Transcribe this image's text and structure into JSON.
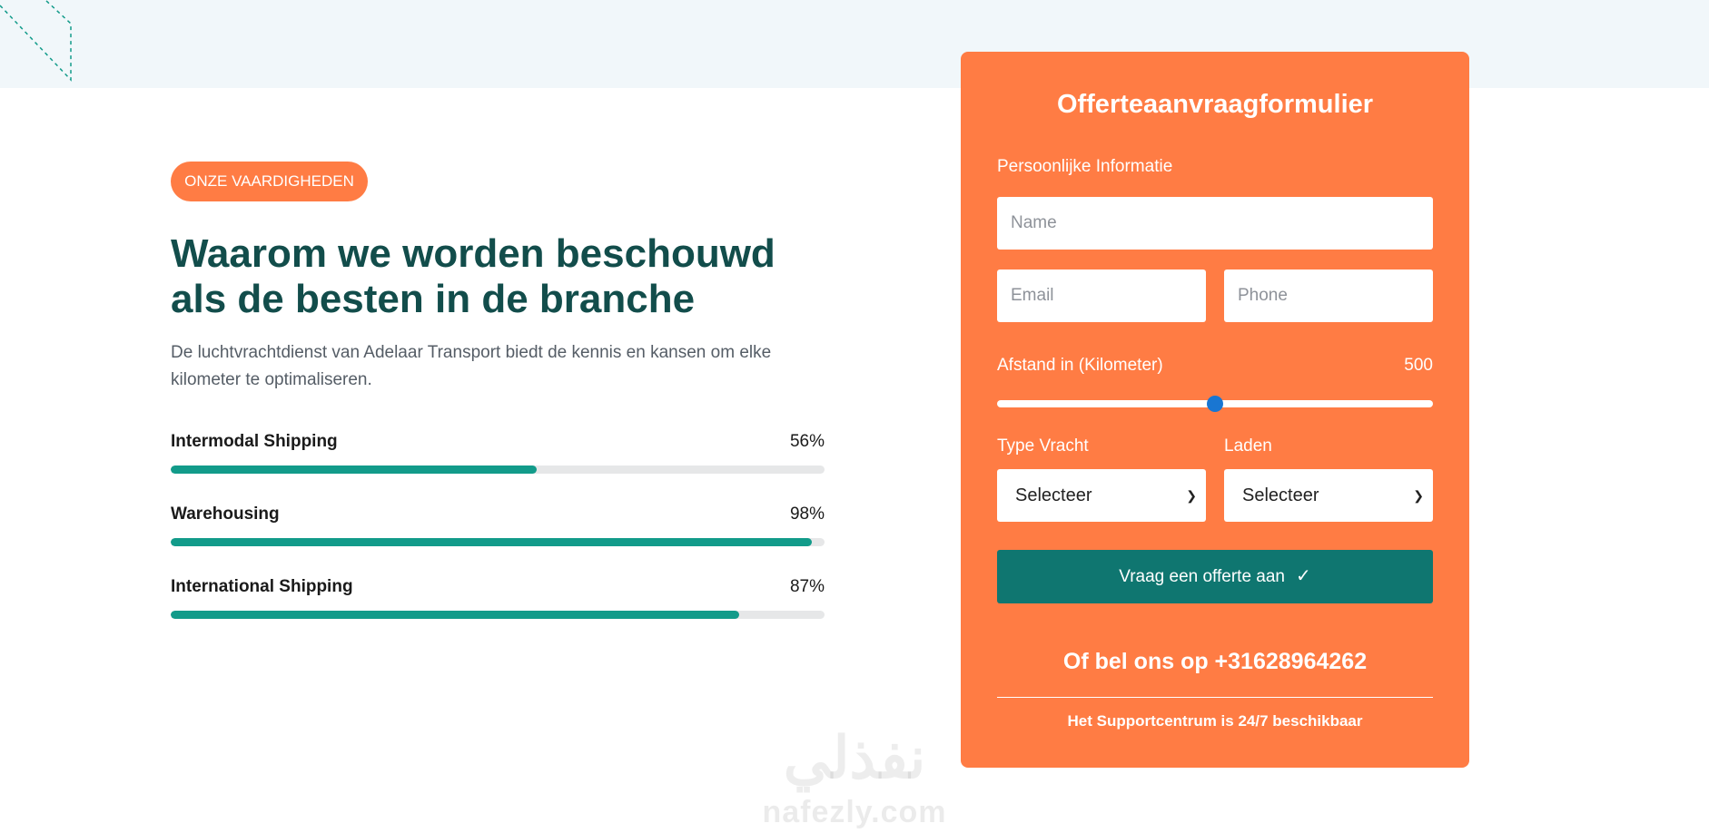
{
  "skills_section": {
    "badge": "ONZE VAARDIGHEDEN",
    "heading": "Waarom we worden beschouwd als de besten in de branche",
    "description": "De luchtvrachtdienst van Adelaar Transport biedt de kennis en kansen om elke kilometer te optimaliseren.",
    "skills": [
      {
        "label": "Intermodal Shipping",
        "value_text": "56%",
        "percent": 56
      },
      {
        "label": "Warehousing",
        "value_text": "98%",
        "percent": 98
      },
      {
        "label": "International Shipping",
        "value_text": "87%",
        "percent": 87
      }
    ]
  },
  "form": {
    "title": "Offerteaanvraagformulier",
    "section_label": "Persoonlijke Informatie",
    "name_placeholder": "Name",
    "email_placeholder": "Email",
    "phone_placeholder": "Phone",
    "distance_label": "Afstand in (Kilometer)",
    "distance_value": "500",
    "distance_fraction": 0.5,
    "cargo_type_label": "Type Vracht",
    "cargo_type_value": "Selecteer",
    "loading_label": "Laden",
    "loading_value": "Selecteer",
    "submit_label": "Vraag een offerte aan",
    "call_text": "Of bel ons op +31628964262",
    "support_text": "Het Supportcentrum is 24/7 beschikbaar"
  },
  "watermark": {
    "arabic": "نفذلي",
    "latin": "nafezly.com"
  },
  "colors": {
    "accent_orange": "#ff7c44",
    "heading_teal": "#124d4b",
    "progress_teal": "#129b8a",
    "button_teal": "#0f7670",
    "slider_thumb": "#1976d2"
  }
}
